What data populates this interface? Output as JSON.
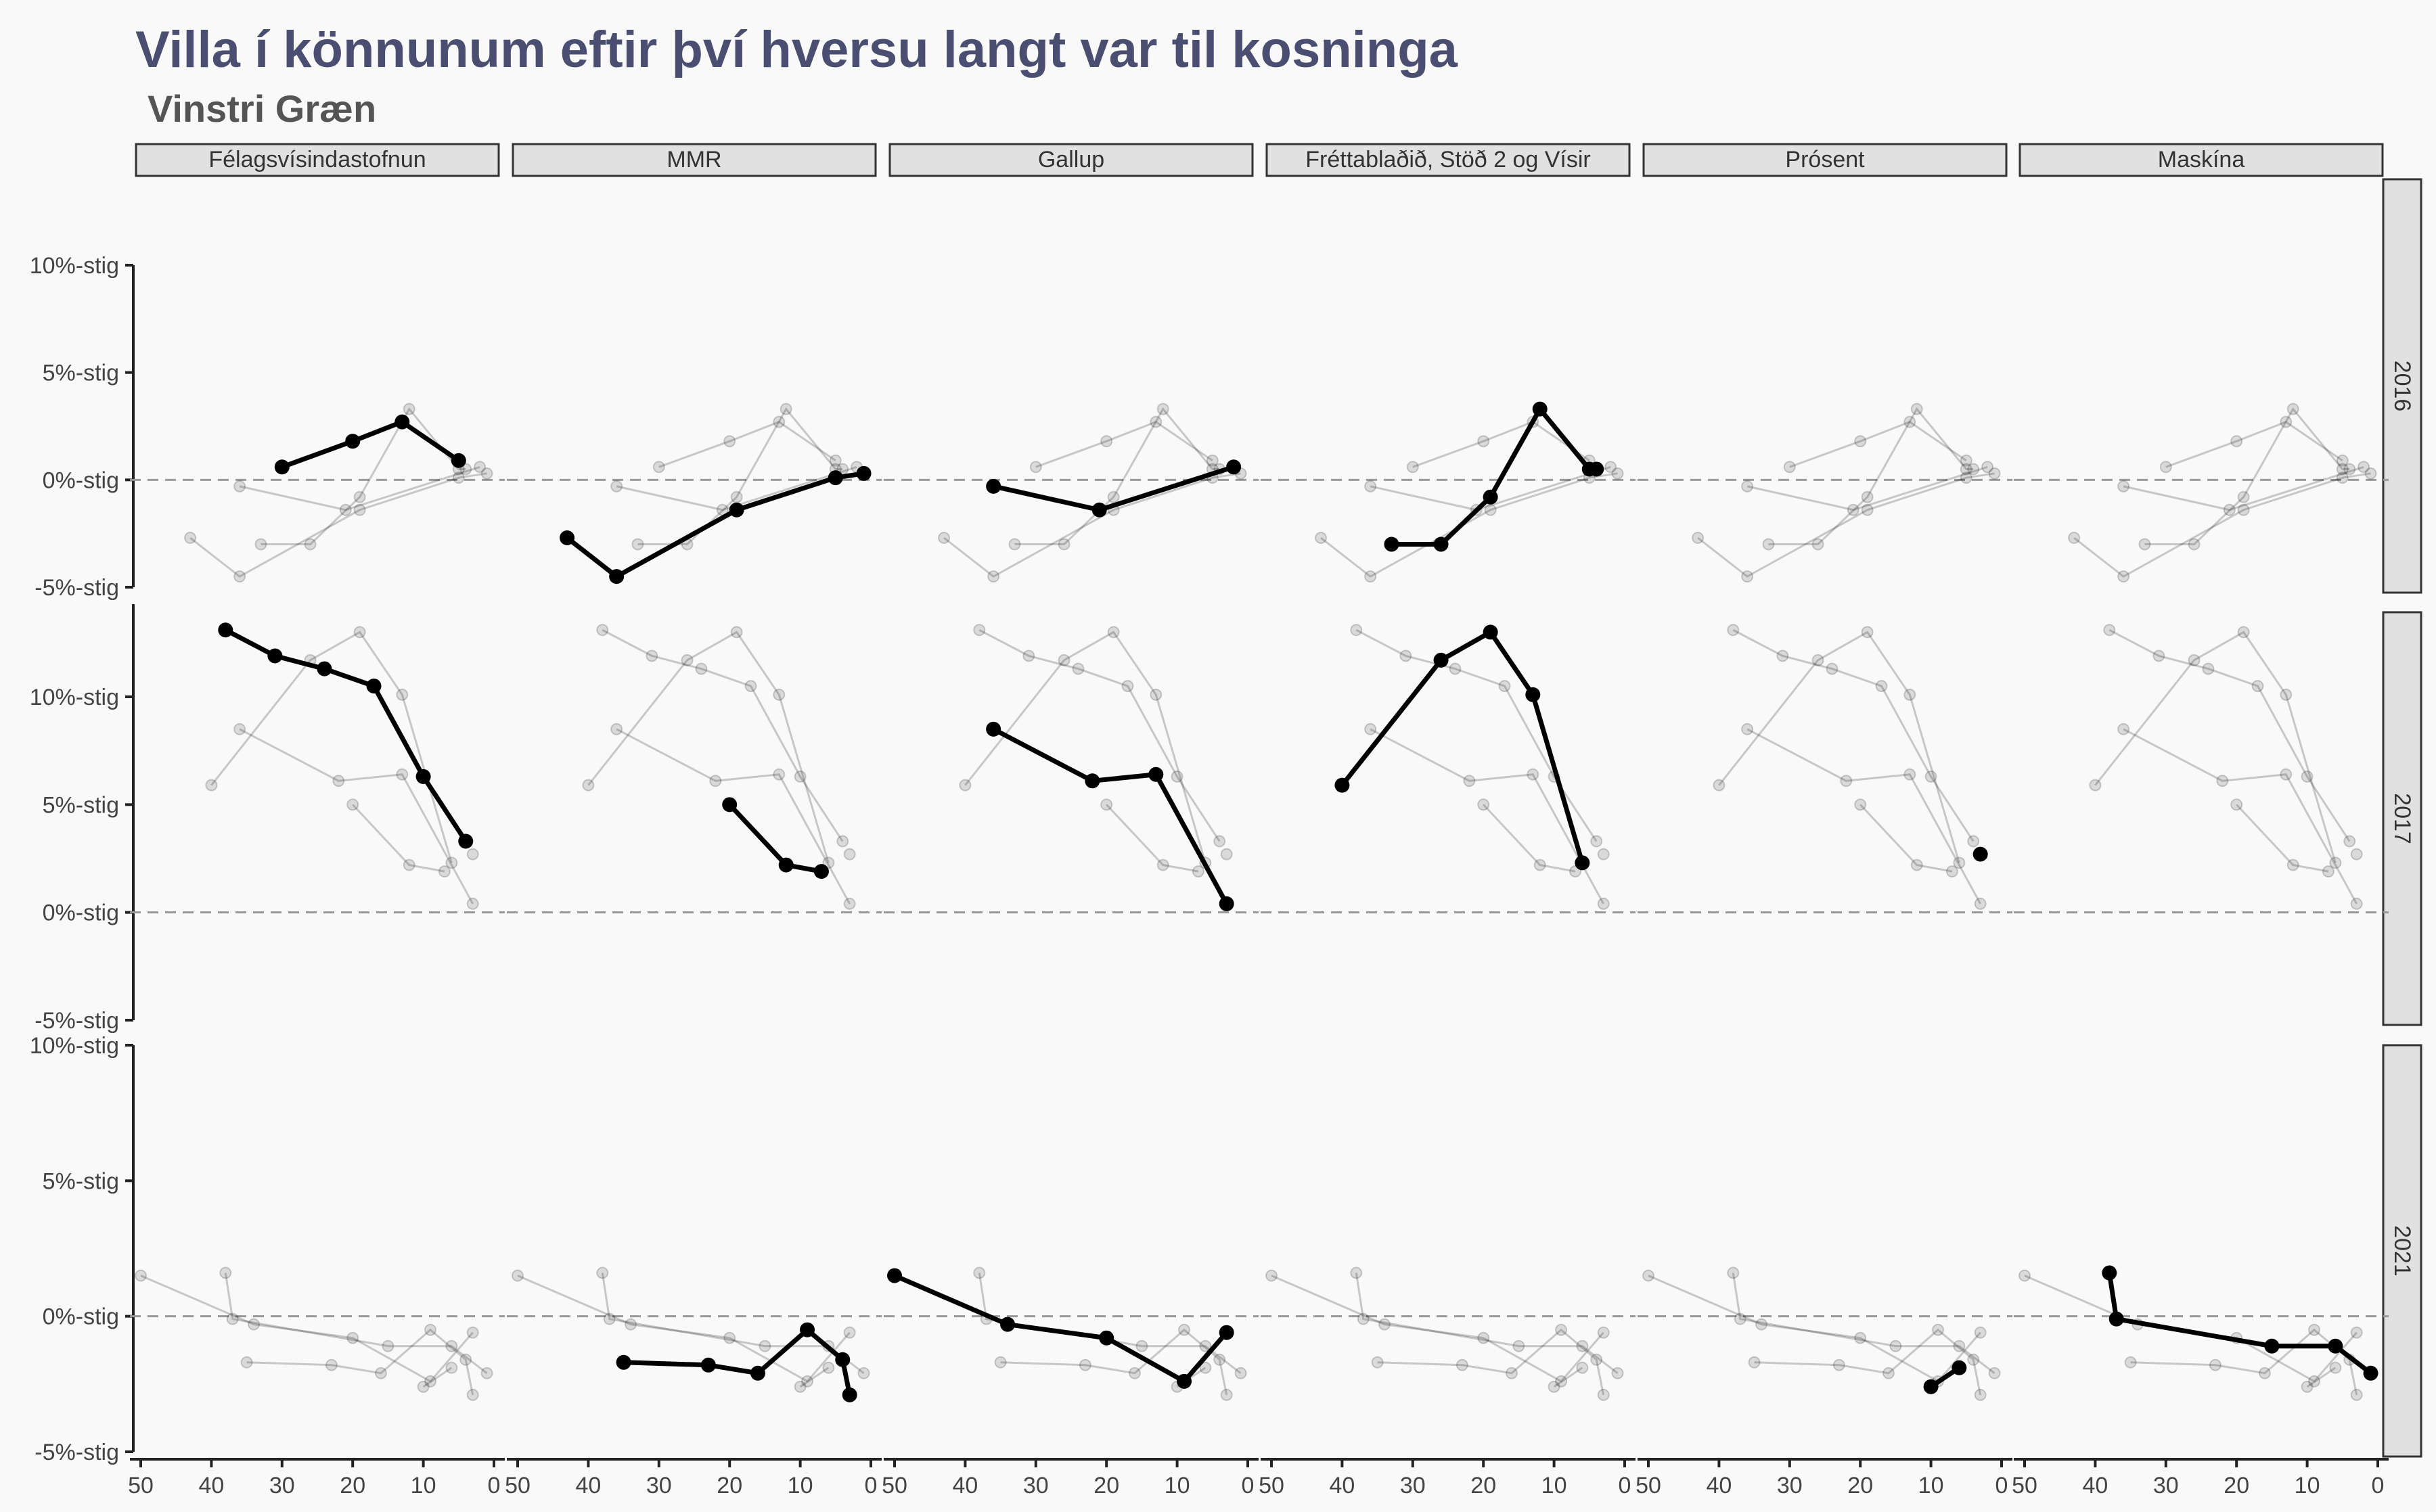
{
  "title": "Villa í könnunum eftir því hversu langt var til kosninga",
  "subtitle": "Vinstri Græn",
  "chart_data": {
    "type": "line",
    "facet_cols": [
      "Félagsvísindastofnun",
      "MMR",
      "Gallup",
      "Fréttablaðið, Stöð 2 og Vísir",
      "Prósent",
      "Maskína"
    ],
    "facet_rows": [
      "2016",
      "2017",
      "2021"
    ],
    "xlim": [
      50,
      0
    ],
    "x_ticks": [
      50,
      40,
      30,
      20,
      10,
      0
    ],
    "ylim": [
      -5,
      10
    ],
    "y_ticks": [
      -5,
      0,
      5,
      10
    ],
    "y_tick_labels": [
      "-5%-stig",
      "0%-stig",
      "5%-stig",
      "10%-stig"
    ],
    "ylim_2017": [
      -5,
      15
    ],
    "y_ticks_2017": [
      -5,
      0,
      5,
      10
    ],
    "reference_line": 0,
    "series": {
      "2016": {
        "Félagsvísindastofnun": [
          [
            30,
            0.6
          ],
          [
            20,
            1.8
          ],
          [
            13,
            2.7
          ],
          [
            5,
            0.9
          ]
        ],
        "MMR": [
          [
            43,
            -2.7
          ],
          [
            36,
            -4.5
          ],
          [
            19,
            -1.4
          ],
          [
            5,
            0.1
          ],
          [
            1,
            0.3
          ]
        ],
        "Gallup": [
          [
            36,
            -0.3
          ],
          [
            21,
            -1.4
          ],
          [
            2,
            0.6
          ]
        ],
        "Fréttablaðið, Stöð 2 og Vísir": [
          [
            33,
            -3.0
          ],
          [
            26,
            -3.0
          ],
          [
            19,
            -0.8
          ],
          [
            12,
            3.3
          ],
          [
            5,
            0.5
          ],
          [
            4,
            0.5
          ]
        ],
        "Prósent": [],
        "Maskína": []
      },
      "2017": {
        "Félagsvísindastofnun": [
          [
            38,
            13.1
          ],
          [
            31,
            11.9
          ],
          [
            24,
            11.3
          ],
          [
            17,
            10.5
          ],
          [
            10,
            6.3
          ],
          [
            4,
            3.3
          ]
        ],
        "MMR": [
          [
            20,
            5.0
          ],
          [
            12,
            2.2
          ],
          [
            7,
            1.9
          ]
        ],
        "Gallup": [
          [
            36,
            8.5
          ],
          [
            22,
            6.1
          ],
          [
            13,
            6.4
          ],
          [
            3,
            0.4
          ]
        ],
        "Fréttablaðið, Stöð 2 og Vísir": [
          [
            40,
            5.9
          ],
          [
            26,
            11.7
          ],
          [
            19,
            13.0
          ],
          [
            13,
            10.1
          ],
          [
            6,
            2.3
          ]
        ],
        "Prósent": [
          [
            3,
            2.7
          ]
        ],
        "Maskína": []
      },
      "2021": {
        "Félagsvísindastofnun": [],
        "MMR": [
          [
            35,
            -1.7
          ],
          [
            23,
            -1.8
          ],
          [
            16,
            -2.1
          ],
          [
            9,
            -0.5
          ],
          [
            4,
            -1.6
          ],
          [
            3,
            -2.9
          ]
        ],
        "Gallup": [
          [
            50,
            1.5
          ],
          [
            34,
            -0.3
          ],
          [
            20,
            -0.8
          ],
          [
            9,
            -2.4
          ],
          [
            3,
            -0.6
          ]
        ],
        "Fréttablaðið, Stöð 2 og Vísir": [],
        "Prósent": [
          [
            10,
            -2.6
          ],
          [
            6,
            -1.9
          ]
        ],
        "Maskína": [
          [
            38,
            1.6
          ],
          [
            37,
            -0.1
          ],
          [
            15,
            -1.1
          ],
          [
            6,
            -1.1
          ],
          [
            1,
            -2.1
          ]
        ]
      }
    }
  }
}
